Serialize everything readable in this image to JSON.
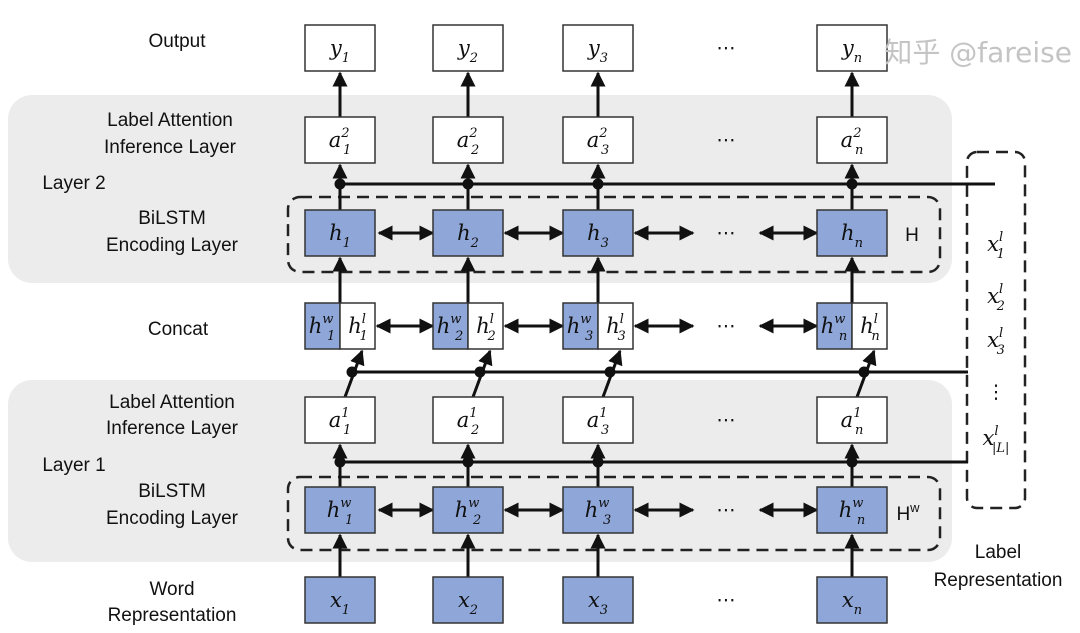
{
  "colors": {
    "blue": "#8ea6d8",
    "gray": "#ececec",
    "stroke": "#222"
  },
  "labels": {
    "output": "Output",
    "lai2_a": "Label Attention",
    "lai2_b": "Inference Layer",
    "layer2": "Layer 2",
    "bilstm2_a": "BiLSTM",
    "bilstm2_b": "Encoding Layer",
    "concat": "Concat",
    "lai1_a": "Label Attention",
    "lai1_b": "Inference Layer",
    "layer1": "Layer 1",
    "bilstm1_a": "BiLSTM",
    "bilstm1_b": "Encoding Layer",
    "word_a": "Word",
    "word_b": "Representation",
    "H": "H",
    "Hw": "H",
    "Hw_sup": "w",
    "labelrep_a": "Label",
    "labelrep_b": "Representation",
    "ellipsis": "⋯",
    "vdots": "⋮"
  },
  "columns": [
    "1",
    "2",
    "3",
    "n"
  ],
  "rows": {
    "output": {
      "base": "y",
      "sup": ""
    },
    "a2": {
      "base": "a",
      "sup": "2"
    },
    "h": {
      "base": "h",
      "sup": ""
    },
    "concat_w": {
      "base": "h",
      "sup": "w"
    },
    "concat_l": {
      "base": "h",
      "sup": "l"
    },
    "a1": {
      "base": "a",
      "sup": "1"
    },
    "hw": {
      "base": "h",
      "sup": "w"
    },
    "x": {
      "base": "x",
      "sup": ""
    }
  },
  "label_vectors": [
    {
      "base": "x",
      "sup": "l",
      "sub": "1"
    },
    {
      "base": "x",
      "sup": "l",
      "sub": "2"
    },
    {
      "base": "x",
      "sup": "l",
      "sub": "3"
    },
    {
      "base": "x",
      "sup": "l",
      "sub": "|L|"
    }
  ],
  "watermark": "知乎 @fareise"
}
